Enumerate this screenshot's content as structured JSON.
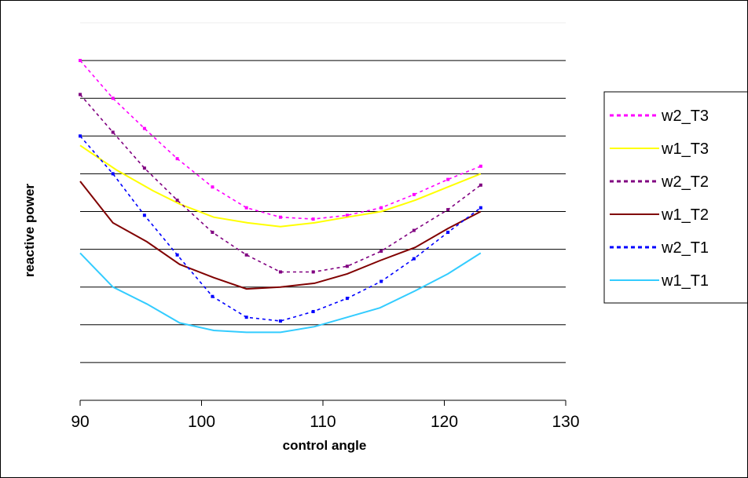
{
  "chart_data": {
    "type": "line",
    "title": "",
    "xlabel": "control angle",
    "ylabel": "reactive power",
    "xlim": [
      90,
      130
    ],
    "xticks": [
      "90",
      "100",
      "110",
      "120",
      "130"
    ],
    "ylim": [
      0,
      10
    ],
    "y_tick_labels_shown": false,
    "grid": "horizontal",
    "legend_position": "right",
    "series": [
      {
        "name": "w2_T3",
        "color": "#ff00ff",
        "style": "dotted",
        "x": [
          90,
          92.7,
          95.3,
          98,
          100.9,
          103.7,
          106.5,
          109.2,
          112,
          114.8,
          117.5,
          120.3,
          123
        ],
        "y": [
          9.0,
          8.0,
          7.2,
          6.4,
          5.65,
          5.1,
          4.85,
          4.8,
          4.9,
          5.1,
          5.45,
          5.85,
          6.2
        ]
      },
      {
        "name": "w1_T3",
        "color": "#ffff00",
        "style": "solid",
        "x": [
          90,
          93,
          96,
          98.2,
          101,
          103.8,
          106.5,
          109.3,
          112,
          114.8,
          117.6,
          120.3,
          123
        ],
        "y": [
          6.75,
          6.1,
          5.55,
          5.2,
          4.85,
          4.7,
          4.6,
          4.7,
          4.85,
          5.0,
          5.3,
          5.65,
          6.0
        ]
      },
      {
        "name": "w2_T2",
        "color": "#800080",
        "style": "dotted",
        "x": [
          90,
          92.7,
          95.3,
          98,
          100.9,
          103.7,
          106.5,
          109.2,
          112,
          114.8,
          117.5,
          120.3,
          123
        ],
        "y": [
          8.1,
          7.1,
          6.15,
          5.3,
          4.45,
          3.85,
          3.4,
          3.4,
          3.55,
          3.95,
          4.5,
          5.05,
          5.7
        ]
      },
      {
        "name": "w1_T2",
        "color": "#800000",
        "style": "solid",
        "x": [
          90,
          92.7,
          95.5,
          98.2,
          101,
          103.7,
          106.5,
          109.3,
          112,
          114.7,
          117.6,
          120.3,
          123
        ],
        "y": [
          5.8,
          4.7,
          4.2,
          3.6,
          3.25,
          2.95,
          3.0,
          3.1,
          3.35,
          3.7,
          4.05,
          4.55,
          5.0
        ]
      },
      {
        "name": "w2_T1",
        "color": "#0000ff",
        "style": "dotted",
        "x": [
          90,
          92.7,
          95.3,
          98,
          100.9,
          103.7,
          106.5,
          109.2,
          112,
          114.8,
          117.5,
          120.3,
          123
        ],
        "y": [
          7.0,
          6.0,
          4.9,
          3.85,
          2.75,
          2.2,
          2.1,
          2.35,
          2.7,
          3.15,
          3.75,
          4.45,
          5.1
        ]
      },
      {
        "name": "w1_T1",
        "color": "#33ccff",
        "style": "solid",
        "x": [
          90,
          92.7,
          95.5,
          98.2,
          101,
          103.7,
          106.5,
          109.3,
          112,
          114.7,
          117.6,
          120.3,
          123
        ],
        "y": [
          3.9,
          3.0,
          2.55,
          2.05,
          1.85,
          1.8,
          1.8,
          1.95,
          2.2,
          2.45,
          2.9,
          3.35,
          3.9
        ]
      }
    ]
  }
}
